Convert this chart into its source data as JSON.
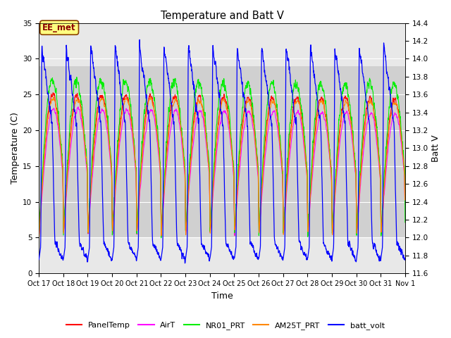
{
  "title": "Temperature and Batt V",
  "xlabel": "Time",
  "ylabel_left": "Temperature (C)",
  "ylabel_right": "Batt V",
  "ylim_left": [
    0,
    35
  ],
  "ylim_right": [
    11.6,
    14.4
  ],
  "xlim": [
    0,
    15
  ],
  "xtick_labels": [
    "Oct 17",
    "Oct 18",
    "Oct 19",
    "Oct 20",
    "Oct 21",
    "Oct 22",
    "Oct 23",
    "Oct 24",
    "Oct 25",
    "Oct 26",
    "Oct 27",
    "Oct 28",
    "Oct 29",
    "Oct 30",
    "Oct 31",
    "Nov 1"
  ],
  "annotation_text": "EE_met",
  "series_colors": {
    "PanelTemp": "#ff0000",
    "AirT": "#ff00ff",
    "NR01_PRT": "#00ee00",
    "AM25T_PRT": "#ff8800",
    "batt_volt": "#0000ff"
  },
  "background_color": "#ffffff",
  "plot_bg_light": "#e8e8e8",
  "plot_bg_dark": "#d0d0d0",
  "shading_y1": 5,
  "shading_y2": 29,
  "yticks_left": [
    0,
    5,
    10,
    15,
    20,
    25,
    30,
    35
  ],
  "yticks_right": [
    11.6,
    11.8,
    12.0,
    12.2,
    12.4,
    12.6,
    12.8,
    13.0,
    13.2,
    13.4,
    13.6,
    13.8,
    14.0,
    14.2,
    14.4
  ]
}
